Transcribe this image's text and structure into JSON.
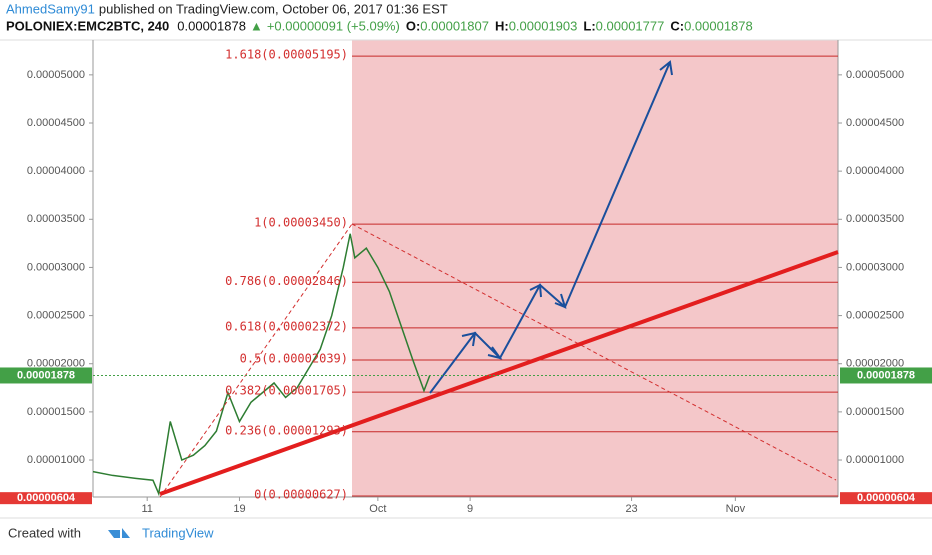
{
  "header": {
    "author": "AhmedSamy91",
    "published": "published on TradingView.com, October 06, 2017 01:36 EST",
    "symbol": "POLONIEX:EMC2BTC, 240",
    "price": "0.00001878",
    "change": "+0.00000091 (+5.09%)",
    "ohlc": [
      {
        "label": "O:",
        "value": "0.00001807"
      },
      {
        "label": "H:",
        "value": "0.00001903"
      },
      {
        "label": "L:",
        "value": "0.00001777"
      },
      {
        "label": "C:",
        "value": "0.00001878"
      }
    ]
  },
  "chart_data": {
    "type": "line",
    "color": "#2e7d32",
    "x": [
      5.3,
      7,
      9,
      10.5,
      11,
      12,
      13,
      14,
      15,
      16,
      17,
      18,
      19,
      20,
      21,
      22,
      23,
      24,
      25,
      26,
      27,
      27.6,
      28,
      29,
      30,
      31,
      32,
      33,
      34,
      34.5
    ],
    "values": [
      8.8e-06,
      8.4e-06,
      8.1e-06,
      7.9e-06,
      6.5e-06,
      1.4e-05,
      1e-05,
      1.05e-05,
      1.15e-05,
      1.3e-05,
      1.7e-05,
      1.4e-05,
      1.6e-05,
      1.7e-05,
      1.8e-05,
      1.65e-05,
      1.75e-05,
      1.95e-05,
      2.15e-05,
      2.5e-05,
      3e-05,
      3.35e-05,
      3.1e-05,
      3.2e-05,
      3e-05,
      2.75e-05,
      2.4e-05,
      2.05e-05,
      1.72e-05,
      1.878e-05
    ],
    "xlim": [
      5.3,
      69.9
    ],
    "ylim": [
      6.16e-06,
      5.31e-05
    ],
    "xticks": [
      {
        "value": 10,
        "label": "11"
      },
      {
        "value": 18,
        "label": "19"
      },
      {
        "value": 30,
        "label": "Oct"
      },
      {
        "value": 38,
        "label": "9"
      },
      {
        "value": 52,
        "label": "23"
      },
      {
        "value": 61,
        "label": "Nov"
      }
    ],
    "yticks": [
      {
        "value": 1e-05,
        "label": "0.00001000"
      },
      {
        "value": 1.5e-05,
        "label": "0.00001500"
      },
      {
        "value": 2e-05,
        "label": "0.00002000"
      },
      {
        "value": 2.5e-05,
        "label": "0.00002500"
      },
      {
        "value": 3e-05,
        "label": "0.00003000"
      },
      {
        "value": 3.5e-05,
        "label": "0.00003500"
      },
      {
        "value": 4e-05,
        "label": "0.00004000"
      },
      {
        "value": 4.5e-05,
        "label": "0.00004500"
      },
      {
        "value": 5e-05,
        "label": "0.00005000"
      }
    ],
    "last_price": 1.878e-05,
    "low_price": {
      "value": 6.04e-06,
      "label": "0.00000604"
    },
    "fib_levels": [
      {
        "label": "1.618(0.00005195)",
        "value": 5.195e-05
      },
      {
        "label": "1(0.00003450)",
        "value": 3.45e-05
      },
      {
        "label": "0.786(0.00002846)",
        "value": 2.846e-05
      },
      {
        "label": "0.618(0.00002372)",
        "value": 2.372e-05
      },
      {
        "label": "0.5(0.00002039)",
        "value": 2.039e-05
      },
      {
        "label": "0.382(0.00001705)",
        "value": 1.705e-05
      },
      {
        "label": "0.236(0.00001293)",
        "value": 1.293e-05
      },
      {
        "label": "0(0.00000627)",
        "value": 6.27e-06
      }
    ]
  },
  "footer": {
    "created": "Created with",
    "brand": "TradingView"
  }
}
